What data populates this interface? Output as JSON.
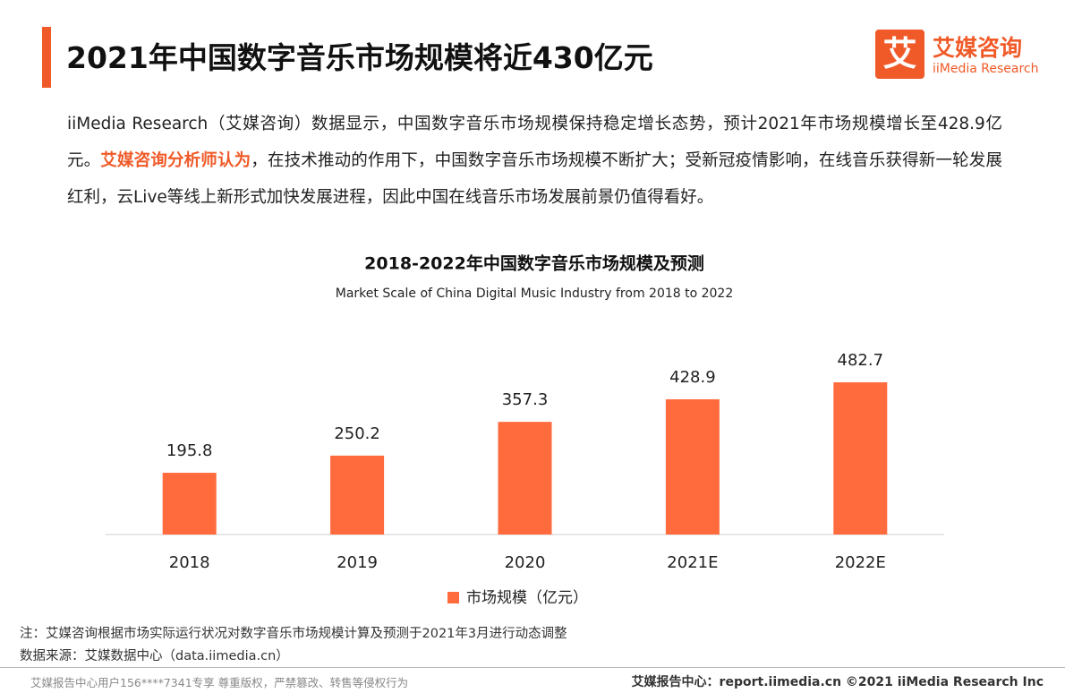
{
  "header": {
    "title": "2021年中国数字音乐市场规模将近430亿元",
    "logo_mark": "艾",
    "logo_name": "艾媒咨询",
    "logo_sub": "iiMedia Research"
  },
  "intro": [
    "iiMedia Research（艾媒咨询）数据显示，中国数字音乐市场规模保持稳定增长态势，预计2021年市场规模增长至428.9亿元。",
    "艾媒咨询分析师认为",
    "，在技术推动的作用下，中国数字音乐市场规模不断扩大；受新冠疫情影响，在线音乐获得新一轮发展红利，云Live等线上新形式加快发展进程，因此中国在线音乐市场发展前景仍值得看好。"
  ],
  "chart_data": {
    "type": "bar",
    "title": "2018-2022年中国数字音乐市场规模及预测",
    "subtitle": "Market Scale of China Digital Music Industry from 2018 to 2022",
    "categories": [
      "2018",
      "2019",
      "2020",
      "2021E",
      "2022E"
    ],
    "series": [
      {
        "name": "市场规模（亿元）",
        "color": "#ff6b3d",
        "values": [
          195.8,
          250.2,
          357.3,
          428.9,
          482.7
        ]
      }
    ]
  },
  "notes": [
    "注：艾媒咨询根据市场实际运行状况对数字音乐市场规模计算及预测于2021年3月进行动态调整",
    "数据来源：艾媒数据中心（data.iimedia.cn）"
  ],
  "footer": {
    "left": "艾媒报告中心用户156****7341专享 尊重版权，严禁篡改、转售等侵权行为",
    "right": "艾媒报告中心：report.iimedia.cn ©2021  iiMedia Research  Inc"
  }
}
